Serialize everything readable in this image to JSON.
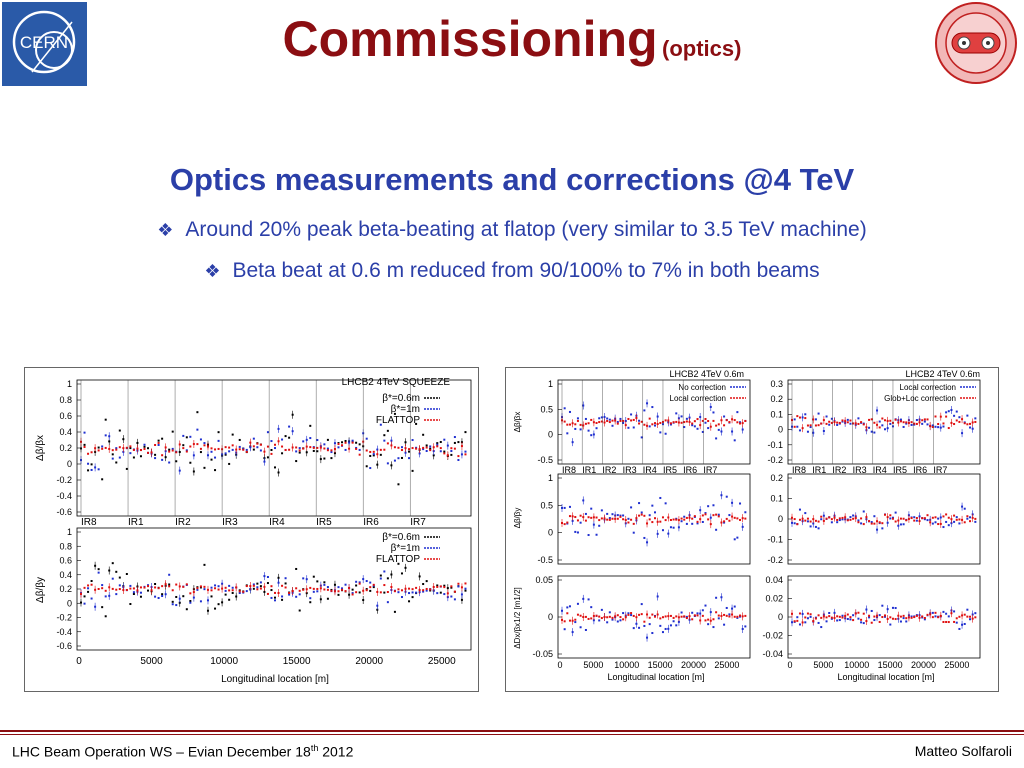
{
  "header": {
    "title_main": "Commissioning",
    "title_sub": "(optics)",
    "logo_left_text": "CERN"
  },
  "content": {
    "heading": "Optics measurements and corrections @4 TeV",
    "bullets": [
      "Around 20% peak beta-beating at flatop (very similar to 3.5 TeV machine)",
      "Beta beat at 0.6 m reduced from  90/100% to 7% in both beams"
    ],
    "bullet_icon": "diamond-bullet-icon"
  },
  "chart_data": [
    {
      "type": "scatter",
      "title": "LHCB2 4TeV SQUEEZE",
      "xlabel": "Longitudinal location [m]",
      "x_ticks": [
        "0",
        "5000",
        "10000",
        "15000",
        "20000",
        "25000"
      ],
      "ir_labels": [
        "IR8",
        "IR1",
        "IR2",
        "IR3",
        "IR4",
        "IR5",
        "IR6",
        "IR7"
      ],
      "subplots": [
        {
          "ylabel": "Δβ/βx",
          "y_ticks": [
            "1",
            "0.8",
            "0.6",
            "0.4",
            "0.2",
            "0",
            "-0.2",
            "-0.4",
            "-0.6"
          ],
          "ylim": [
            -0.6,
            1
          ]
        },
        {
          "ylabel": "Δβ/βy",
          "y_ticks": [
            "1",
            "0.8",
            "0.6",
            "0.4",
            "0.2",
            "0",
            "-0.2",
            "-0.4",
            "-0.6"
          ],
          "ylim": [
            -0.6,
            1
          ]
        }
      ],
      "legend": [
        {
          "name": "β*=0.6m",
          "color": "#000000"
        },
        {
          "name": "β*=1m",
          "color": "#1f2fd0"
        },
        {
          "name": "FLATTOP",
          "color": "#e01010"
        }
      ]
    },
    {
      "type": "scatter",
      "title": "LHCB2 4TeV 0.6m",
      "xlabel": "Longitudinal location [m]",
      "x_ticks": [
        "0",
        "5000",
        "10000",
        "15000",
        "20000",
        "25000"
      ],
      "ir_labels": [
        "IR8",
        "IR1",
        "IR2",
        "IR3",
        "IR4",
        "IR5",
        "IR6",
        "IR7"
      ],
      "subplots": [
        {
          "ylabel": "Δβ/βx",
          "y_ticks": [
            "1",
            "0.5",
            "0",
            "-0.5"
          ]
        },
        {
          "ylabel": "Δβ/βy",
          "y_ticks": [
            "1",
            "0.5",
            "0",
            "-0.5"
          ]
        },
        {
          "ylabel": "ΔDx/βx1/2 [m1/2]",
          "y_ticks": [
            "0.05",
            "0",
            "-0.05"
          ]
        }
      ],
      "legend": [
        {
          "name": "No correction",
          "color": "#1f2fd0"
        },
        {
          "name": "Local correction",
          "color": "#e01010"
        }
      ]
    },
    {
      "type": "scatter",
      "title": "LHCB2 4TeV 0.6m",
      "xlabel": "Longitudinal location [m]",
      "x_ticks": [
        "0",
        "5000",
        "10000",
        "15000",
        "20000",
        "25000"
      ],
      "ir_labels": [
        "IR8",
        "IR1",
        "IR2",
        "IR3",
        "IR4",
        "IR5",
        "IR6",
        "IR7"
      ],
      "subplots": [
        {
          "y_ticks": [
            "0.3",
            "0.2",
            "0.1",
            "0",
            "-0.1",
            "-0.2"
          ]
        },
        {
          "y_ticks": [
            "0.2",
            "0.1",
            "0",
            "-0.1",
            "-0.2"
          ]
        },
        {
          "y_ticks": [
            "0.04",
            "0.02",
            "0",
            "-0.02",
            "-0.04"
          ]
        }
      ],
      "legend": [
        {
          "name": "Local correction",
          "color": "#1f2fd0"
        },
        {
          "name": "Glob+Loc correction",
          "color": "#e01010"
        }
      ]
    }
  ],
  "footer": {
    "left_pre": "LHC Beam Operation WS – Evian December 18",
    "left_sup": "th",
    "left_post": " 2012",
    "right": "Matteo Solfaroli"
  },
  "colors": {
    "title": "#8b0e12",
    "heading": "#2b3fa8",
    "cern_blue": "#2a5aa8"
  }
}
